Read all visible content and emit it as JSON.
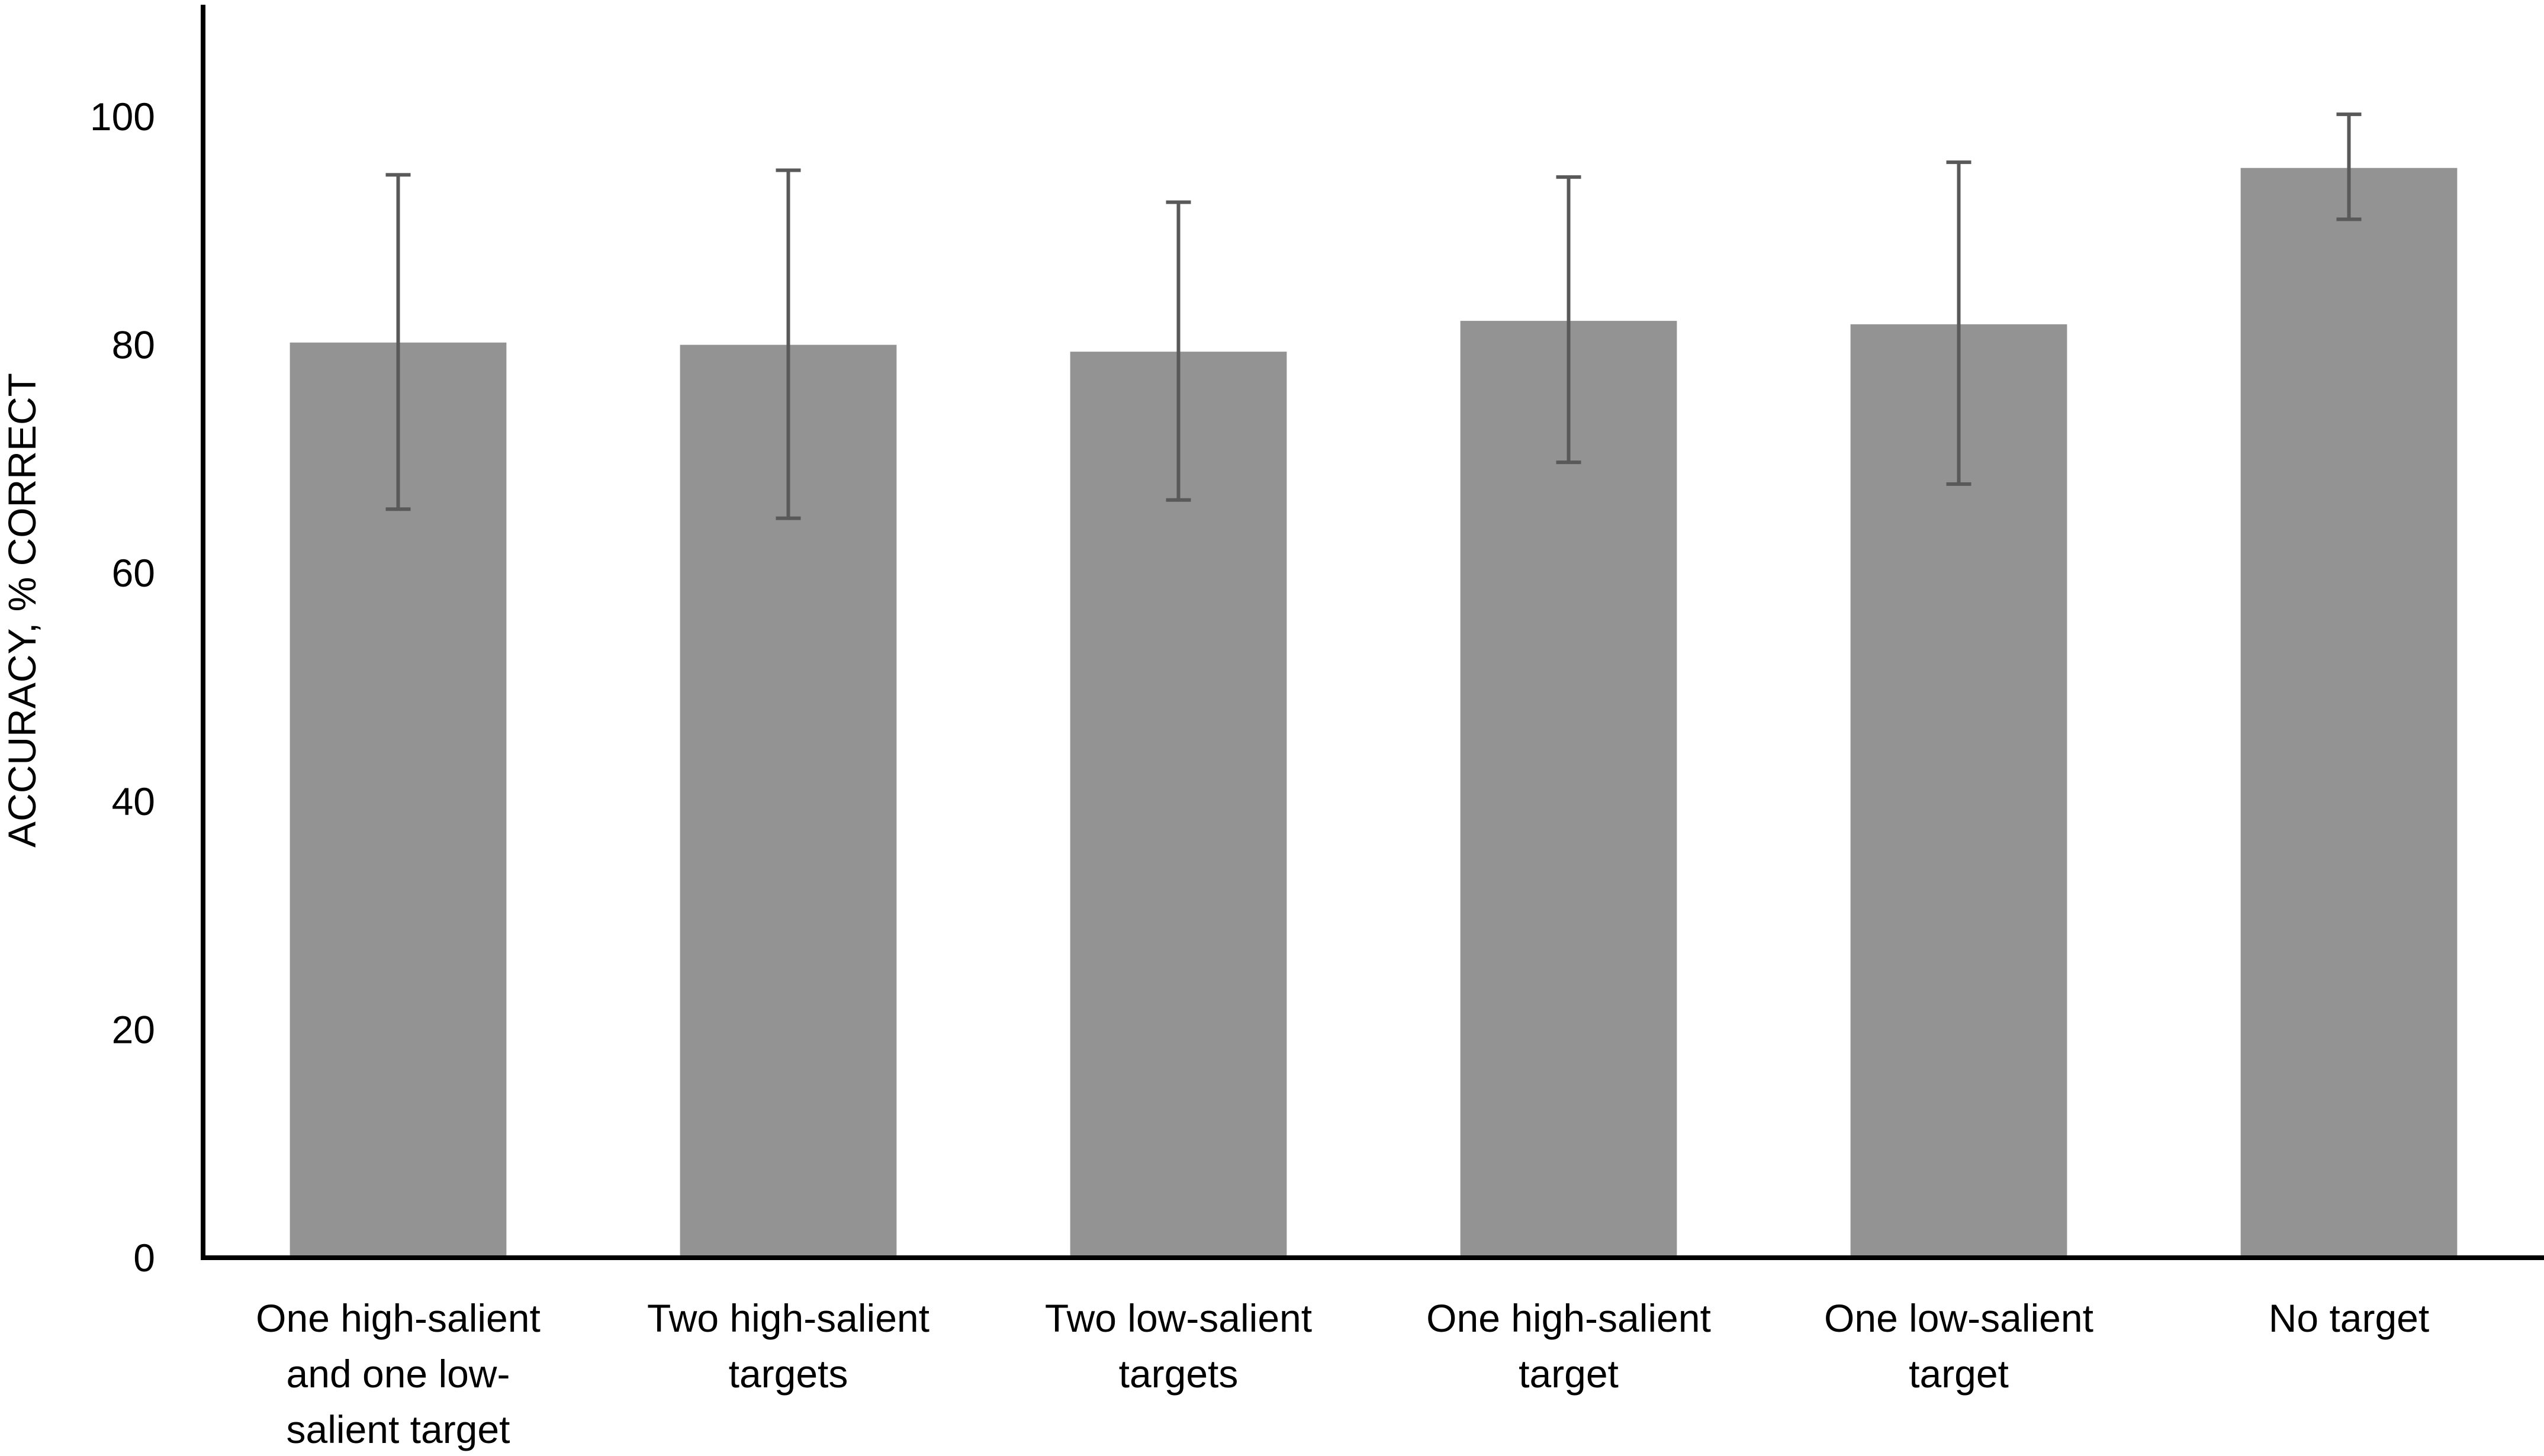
{
  "chart_data": {
    "type": "bar",
    "title": "",
    "xlabel": "",
    "ylabel": "ACCURACY, % CORRECT",
    "ylim": [
      0,
      110
    ],
    "yticks": [
      0,
      20,
      40,
      60,
      80,
      100
    ],
    "grid": false,
    "legend": "none",
    "categories": [
      "One high-salient and one low-salient target",
      "Two high-salient targets",
      "Two low-salient targets",
      "One high-salient target",
      "One low-salient target",
      "No target"
    ],
    "category_label_lines": [
      [
        "One high-salient",
        "and one low-",
        "salient target"
      ],
      [
        "Two high-salient",
        "targets"
      ],
      [
        "Two low-salient",
        "targets"
      ],
      [
        "One high-salient",
        "target"
      ],
      [
        "One low-salient",
        "target"
      ],
      [
        "No target"
      ]
    ],
    "series": [
      {
        "values": [
          80.2,
          80.0,
          79.4,
          82.1,
          81.8,
          95.5
        ],
        "error_upper": [
          94.9,
          95.3,
          92.5,
          94.7,
          96.0,
          100.2
        ],
        "error_lower": [
          65.6,
          64.8,
          66.4,
          69.7,
          67.8,
          91.0
        ]
      }
    ],
    "colors": {
      "bar": "#939393",
      "error_bar": "#595959",
      "axis": "#000000"
    }
  }
}
